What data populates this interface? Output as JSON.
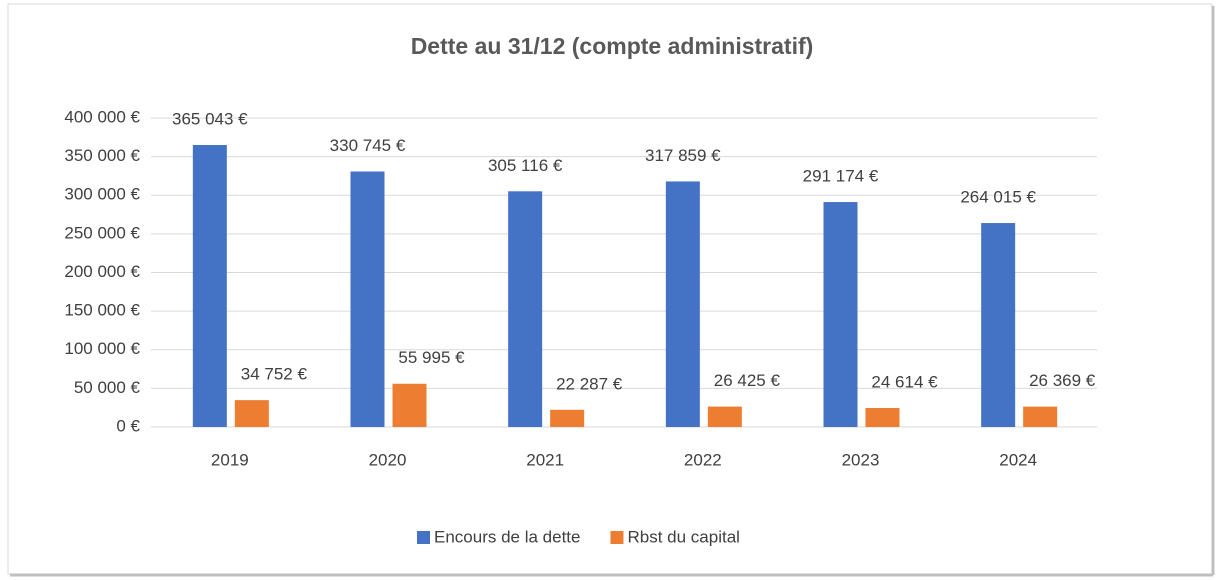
{
  "chart_data": {
    "type": "bar",
    "title": "Dette au 31/12 (compte administratif)",
    "categories": [
      "2019",
      "2020",
      "2021",
      "2022",
      "2023",
      "2024"
    ],
    "series": [
      {
        "name": "Encours de la dette",
        "color": "#4472c4",
        "values": [
          365043,
          330745,
          305116,
          317859,
          291174,
          264015
        ],
        "value_labels": [
          "365 043 €",
          "330 745 €",
          "305 116 €",
          "317 859 €",
          "291 174 €",
          "264 015 €"
        ]
      },
      {
        "name": "Rbst du capital",
        "color": "#ed7d31",
        "values": [
          34752,
          55995,
          22287,
          26425,
          24614,
          26369
        ],
        "value_labels": [
          "34 752 €",
          "55 995 €",
          "22 287 €",
          "26 425 €",
          "24 614 €",
          "26 369 €"
        ]
      }
    ],
    "ylim": [
      0,
      400000
    ],
    "yticks": [
      {
        "value": 0,
        "label": "0 €"
      },
      {
        "value": 50000,
        "label": "50 000 €"
      },
      {
        "value": 100000,
        "label": "100 000 €"
      },
      {
        "value": 150000,
        "label": "150 000 €"
      },
      {
        "value": 200000,
        "label": "200 000 €"
      },
      {
        "value": 250000,
        "label": "250 000 €"
      },
      {
        "value": 300000,
        "label": "300 000 €"
      },
      {
        "value": 350000,
        "label": "350 000 €"
      },
      {
        "value": 400000,
        "label": "400 000 €"
      }
    ],
    "grid": true,
    "legend": "bottom"
  }
}
